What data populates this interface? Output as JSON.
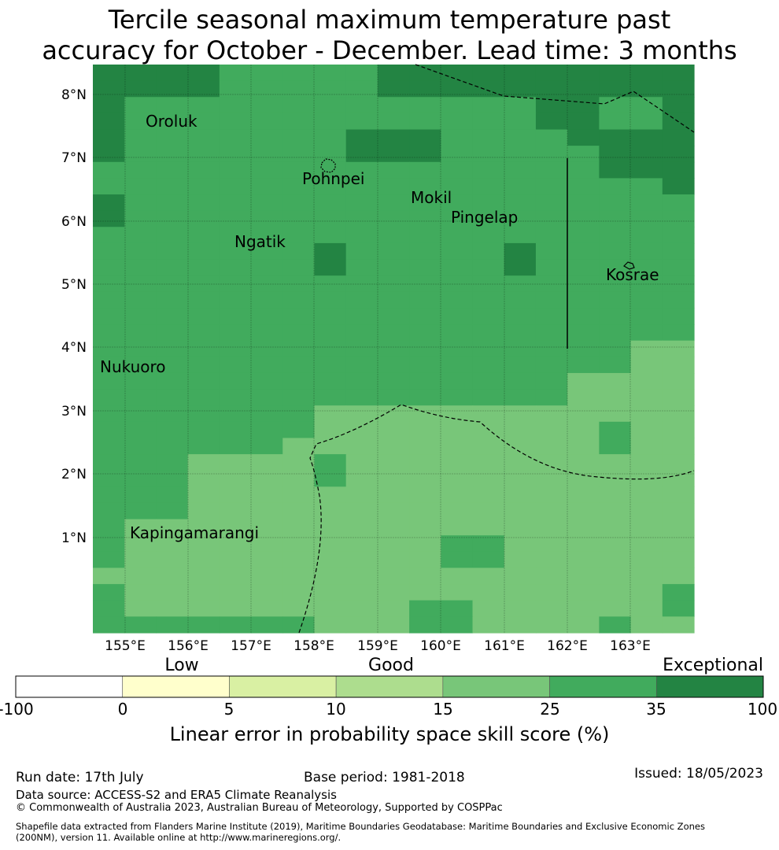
{
  "title": {
    "line1": "Tercile seasonal maximum temperature past",
    "line2": "accuracy for October - December. Lead time: 3 months"
  },
  "map": {
    "lon_ticks": [
      "155°E",
      "156°E",
      "157°E",
      "158°E",
      "159°E",
      "160°E",
      "161°E",
      "162°E",
      "163°E"
    ],
    "lat_ticks": [
      "8°N",
      "7°N",
      "6°N",
      "5°N",
      "4°N",
      "3°N",
      "2°N",
      "1°N"
    ],
    "places": [
      "Oroluk",
      "Pohnpei",
      "Mokil",
      "Pingelap",
      "Ngatik",
      "Kosrae",
      "Nukuoro",
      "Kapingamarangi"
    ],
    "cell_classes": {
      "3": "#78c679",
      "4": "#41ab5d",
      "5": "#238443"
    },
    "grid_rows": [
      "5555444445555555555",
      "5555444445555555555",
      "5444444444444455445",
      "5444444444444455445",
      "5444444455544445555",
      "5444444455544444555",
      "4444444444444444555",
      "4444444444444444445",
      "5444444444444444444",
      "5444444444444444444",
      "4444444444444444444",
      "4444444544444544444",
      "4444444544444544444",
      "4444444444444444444",
      "4444444444444444444",
      "4444444444444444444",
      "4444444444444444444",
      "4444444444444444433",
      "4444444444444444433",
      "4444444444444443333",
      "4444444444444443333",
      "4444444333333333333",
      "4444444333333333433",
      "4444443333333333433",
      "4443333433333333333",
      "4443333433333333333",
      "4443333333333333333",
      "4443333333333333333",
      "4333333333333333333",
      "4333333333344333333",
      "4333333333344333333",
      "3333333333333333333",
      "4333333333333333334",
      "4333333333443333334",
      "4444444333443333433"
    ]
  },
  "legend": {
    "categories": [
      "Low",
      "Good",
      "Exceptional"
    ],
    "ticks": [
      "-100",
      "0",
      "5",
      "10",
      "15",
      "25",
      "35",
      "100"
    ],
    "colors": [
      "#ffffff",
      "#ffffcc",
      "#d9f0a3",
      "#addd8e",
      "#78c679",
      "#41ab5d",
      "#238443"
    ],
    "label": "Linear error in probability space skill score (%)"
  },
  "footer": {
    "run_date": "Run date: 17th July",
    "base_period": "Base period: 1981-2018",
    "issued": "Issued: 18/05/2023",
    "data_source": "Data source: ACCESS-S2 and ERA5 Climate Reanalysis",
    "copyright": "© Commonwealth of Australia 2023, Australian Bureau of Meteorology, Supported by COSPPac",
    "shapefile_1": "Shapefile data extracted from Flanders Marine Institute (2019), Maritime Boundaries Geodatabase: Maritime Boundaries and Exclusive Economic Zones",
    "shapefile_2": "(200NM), version 11. Available online at http://www.marineregions.org/."
  }
}
